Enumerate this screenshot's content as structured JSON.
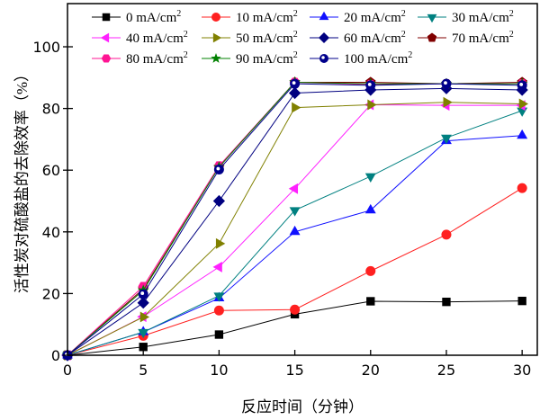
{
  "chart_data": {
    "type": "line",
    "xlabel": "反应时间（分钟）",
    "ylabel": "活性炭对硫酸盐的去除效率（%）",
    "xlim": [
      0,
      31
    ],
    "ylim": [
      0,
      114
    ],
    "xticks": [
      0,
      5,
      10,
      15,
      20,
      25,
      30
    ],
    "yticks": [
      0,
      20,
      40,
      60,
      80,
      100
    ],
    "grid": false,
    "legend_position": "top",
    "x": [
      0,
      5,
      10,
      15,
      20,
      25,
      30
    ],
    "series": [
      {
        "name": "0 mA/cm",
        "sup": "2",
        "color": "#000000",
        "marker": "square",
        "values": [
          0,
          2.7,
          6.7,
          13.3,
          17.5,
          17.3,
          17.6
        ]
      },
      {
        "name": "10 mA/cm",
        "sup": "2",
        "color": "#ff2020",
        "marker": "circle",
        "values": [
          0,
          6.3,
          14.5,
          14.8,
          27.3,
          39.1,
          54.2
        ]
      },
      {
        "name": "20 mA/cm",
        "sup": "2",
        "color": "#1010ff",
        "marker": "triangle-up",
        "values": [
          0,
          7.5,
          18.5,
          40,
          47,
          69.5,
          71.2
        ]
      },
      {
        "name": "30 mA/cm",
        "sup": "2",
        "color": "#008080",
        "marker": "triangle-down",
        "values": [
          0,
          7.5,
          19.3,
          47,
          58,
          70.5,
          79.3
        ]
      },
      {
        "name": "40 mA/cm",
        "sup": "2",
        "color": "#ff20ff",
        "marker": "triangle-left",
        "values": [
          0,
          12.5,
          28.6,
          54,
          81.2,
          81,
          81
        ]
      },
      {
        "name": "50 mA/cm",
        "sup": "2",
        "color": "#808000",
        "marker": "triangle-right",
        "values": [
          0,
          12.4,
          36.2,
          80.3,
          81.2,
          82,
          81.5
        ]
      },
      {
        "name": "60 mA/cm",
        "sup": "2",
        "color": "#000080",
        "marker": "diamond",
        "values": [
          0,
          17,
          50,
          85,
          86,
          86.5,
          86
        ]
      },
      {
        "name": "70 mA/cm",
        "sup": "2",
        "color": "#800000",
        "marker": "pentagon",
        "values": [
          0,
          21.5,
          61,
          88.5,
          88.5,
          88,
          88.5
        ]
      },
      {
        "name": "80 mA/cm",
        "sup": "2",
        "color": "#ff1493",
        "marker": "hexagon",
        "values": [
          0,
          22.3,
          61.4,
          88.5,
          87.8,
          88,
          88
        ]
      },
      {
        "name": "90 mA/cm",
        "sup": "2",
        "color": "#008000",
        "marker": "star",
        "values": [
          0,
          21,
          61,
          88.5,
          88,
          88,
          88
        ]
      },
      {
        "name": "100 mA/cm",
        "sup": "2",
        "color": "#00008b",
        "marker": "circle-dot",
        "values": [
          0,
          19.8,
          60.2,
          88,
          87.5,
          88,
          87.5
        ]
      }
    ]
  }
}
